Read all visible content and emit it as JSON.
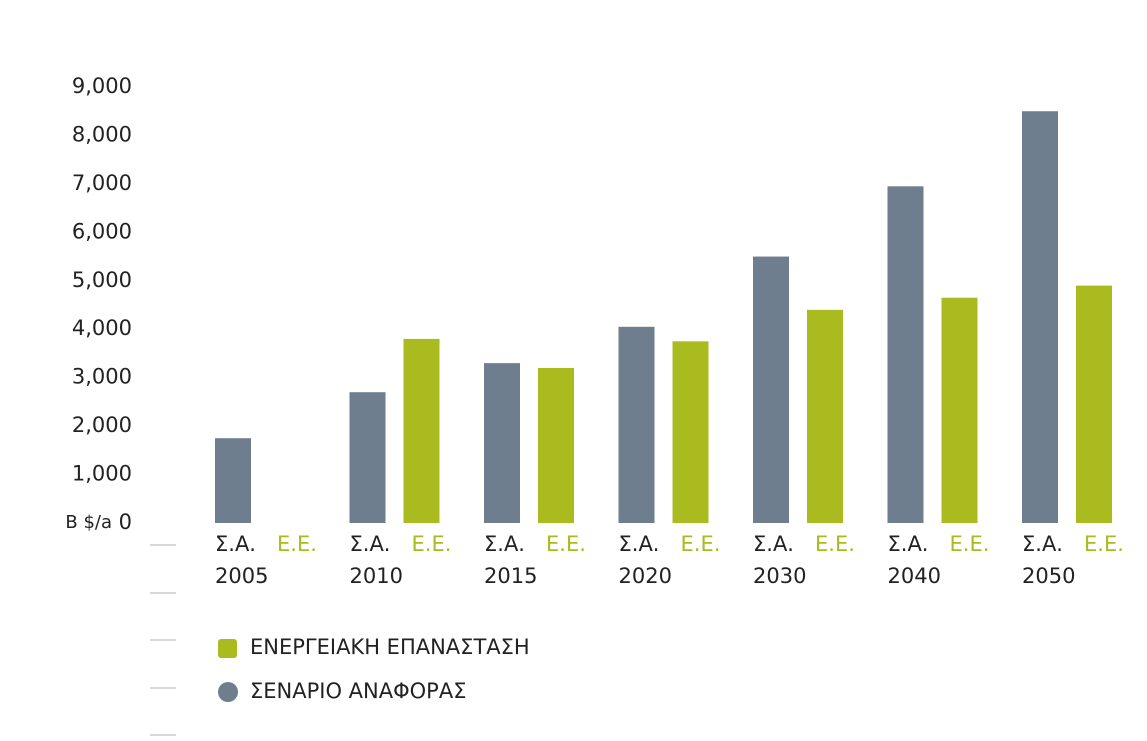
{
  "chart_data": {
    "type": "bar",
    "ylabel": "B $/a",
    "categories": [
      "2005",
      "2010",
      "2015",
      "2020",
      "2030",
      "2040",
      "2050"
    ],
    "series": [
      {
        "name": "ΣΕΝΑΡΙΟ ΑΝΑΦΟΡΑΣ",
        "label": "Σ.Α.",
        "color": "#6e7e8e",
        "values": [
          1750,
          2700,
          3300,
          4050,
          5500,
          6950,
          8500
        ]
      },
      {
        "name": "ΕΝΕΡΓΕΙΑΚΗ ΕΠΑΝΑΣΤΑΣΗ",
        "label": "Ε.Ε.",
        "color": "#a9bb1e",
        "values": [
          null,
          3800,
          3200,
          3750,
          4400,
          4650,
          4900
        ]
      }
    ],
    "ylim": [
      0,
      9000
    ],
    "yticks": [
      0,
      {
        "value": 1000,
        "label": "1,000"
      },
      {
        "value": 2000,
        "label": "2,000"
      },
      {
        "value": 3000,
        "label": "3,000"
      },
      {
        "value": 4000,
        "label": "4,000"
      },
      {
        "value": 5000,
        "label": "5,000"
      },
      {
        "value": 6000,
        "label": "6,000"
      },
      {
        "value": 7000,
        "label": "7,000"
      },
      {
        "value": 8000,
        "label": "8,000"
      },
      {
        "value": 9000,
        "label": "9,000"
      }
    ],
    "grid": false
  }
}
